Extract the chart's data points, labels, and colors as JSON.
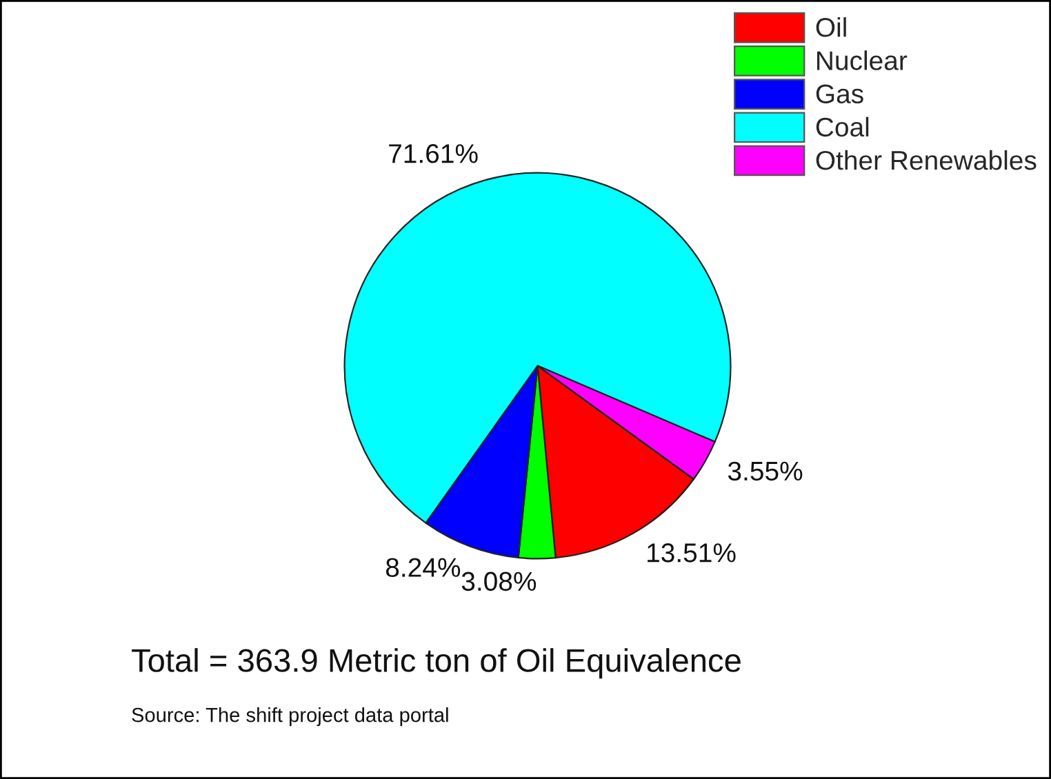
{
  "chart_data": {
    "type": "pie",
    "categories": [
      "Oil",
      "Nuclear",
      "Gas",
      "Coal",
      "Other Renewables"
    ],
    "values": [
      13.51,
      3.08,
      8.24,
      71.61,
      3.55
    ],
    "colors": [
      "#ff0000",
      "#00ff00",
      "#0000ff",
      "#00ffff",
      "#ff00ff"
    ],
    "value_labels": [
      "13.51%",
      "3.08%",
      "8.24%",
      "71.61%",
      "3.55%"
    ],
    "legend": "top right",
    "annotations": [
      "Total = 363.9 Metric ton of Oil Equivalence",
      "Source: The shift project data portal"
    ]
  }
}
